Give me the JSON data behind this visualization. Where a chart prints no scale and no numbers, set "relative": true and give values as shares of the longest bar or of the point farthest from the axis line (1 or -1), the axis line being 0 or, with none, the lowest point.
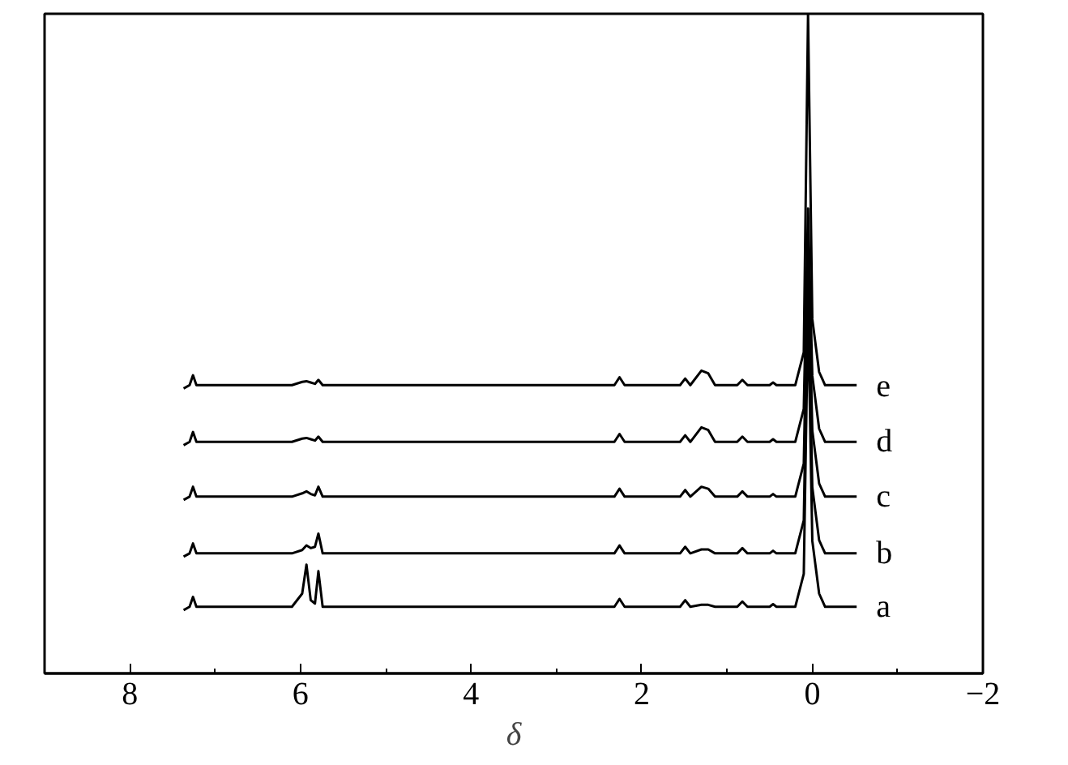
{
  "chart_data": {
    "type": "line",
    "xlabel": "δ",
    "relative": true,
    "xlim": [
      9,
      -2
    ],
    "xticks": [
      8,
      6,
      4,
      2,
      0,
      {
        "value": -2,
        "label": "−2"
      }
    ],
    "grid": false,
    "marker": "none",
    "line_style": "solid",
    "x": [
      7.37,
      7.3,
      7.26,
      7.22,
      7.1,
      6.1,
      5.98,
      5.93,
      5.88,
      5.83,
      5.79,
      5.74,
      5.6,
      2.32,
      2.26,
      2.2,
      1.55,
      1.49,
      1.43,
      1.3,
      1.22,
      1.14,
      0.88,
      0.82,
      0.76,
      0.5,
      0.46,
      0.42,
      0.2,
      0.1,
      0.05,
      0.0,
      -0.08,
      -0.15,
      -0.52
    ],
    "series": [
      {
        "name": "a",
        "color": "#000000",
        "values": [
          0.096,
          0.101,
          0.116,
          0.101,
          0.101,
          0.101,
          0.121,
          0.165,
          0.111,
          0.106,
          0.155,
          0.101,
          0.101,
          0.101,
          0.113,
          0.101,
          0.101,
          0.111,
          0.101,
          0.104,
          0.104,
          0.101,
          0.101,
          0.109,
          0.101,
          0.101,
          0.105,
          0.101,
          0.101,
          0.151,
          0.55,
          0.201,
          0.121,
          0.101,
          0.101
        ]
      },
      {
        "name": "b",
        "color": "#000000",
        "values": [
          0.177,
          0.182,
          0.197,
          0.182,
          0.182,
          0.182,
          0.187,
          0.194,
          0.19,
          0.192,
          0.212,
          0.182,
          0.182,
          0.182,
          0.194,
          0.182,
          0.182,
          0.192,
          0.182,
          0.188,
          0.188,
          0.182,
          0.182,
          0.19,
          0.182,
          0.182,
          0.186,
          0.182,
          0.182,
          0.232,
          0.6,
          0.282,
          0.202,
          0.182,
          0.182
        ]
      },
      {
        "name": "c",
        "color": "#000000",
        "values": [
          0.263,
          0.268,
          0.283,
          0.268,
          0.268,
          0.268,
          0.273,
          0.276,
          0.272,
          0.27,
          0.283,
          0.268,
          0.268,
          0.268,
          0.28,
          0.268,
          0.268,
          0.278,
          0.268,
          0.283,
          0.28,
          0.268,
          0.268,
          0.276,
          0.268,
          0.268,
          0.272,
          0.268,
          0.268,
          0.318,
          0.65,
          0.368,
          0.288,
          0.268,
          0.268
        ]
      },
      {
        "name": "d",
        "color": "#000000",
        "values": [
          0.346,
          0.351,
          0.366,
          0.351,
          0.351,
          0.351,
          0.356,
          0.357,
          0.355,
          0.353,
          0.359,
          0.351,
          0.351,
          0.351,
          0.363,
          0.351,
          0.351,
          0.361,
          0.351,
          0.373,
          0.369,
          0.351,
          0.351,
          0.359,
          0.351,
          0.351,
          0.355,
          0.351,
          0.351,
          0.401,
          0.705,
          0.451,
          0.371,
          0.351,
          0.351
        ]
      },
      {
        "name": "e",
        "color": "#000000",
        "values": [
          0.432,
          0.437,
          0.452,
          0.437,
          0.437,
          0.437,
          0.442,
          0.443,
          0.441,
          0.439,
          0.445,
          0.437,
          0.437,
          0.437,
          0.449,
          0.437,
          0.437,
          0.447,
          0.437,
          0.459,
          0.455,
          0.437,
          0.437,
          0.445,
          0.437,
          0.437,
          0.441,
          0.437,
          0.437,
          0.487,
          1,
          0.537,
          0.457,
          0.437,
          0.437
        ]
      }
    ]
  }
}
